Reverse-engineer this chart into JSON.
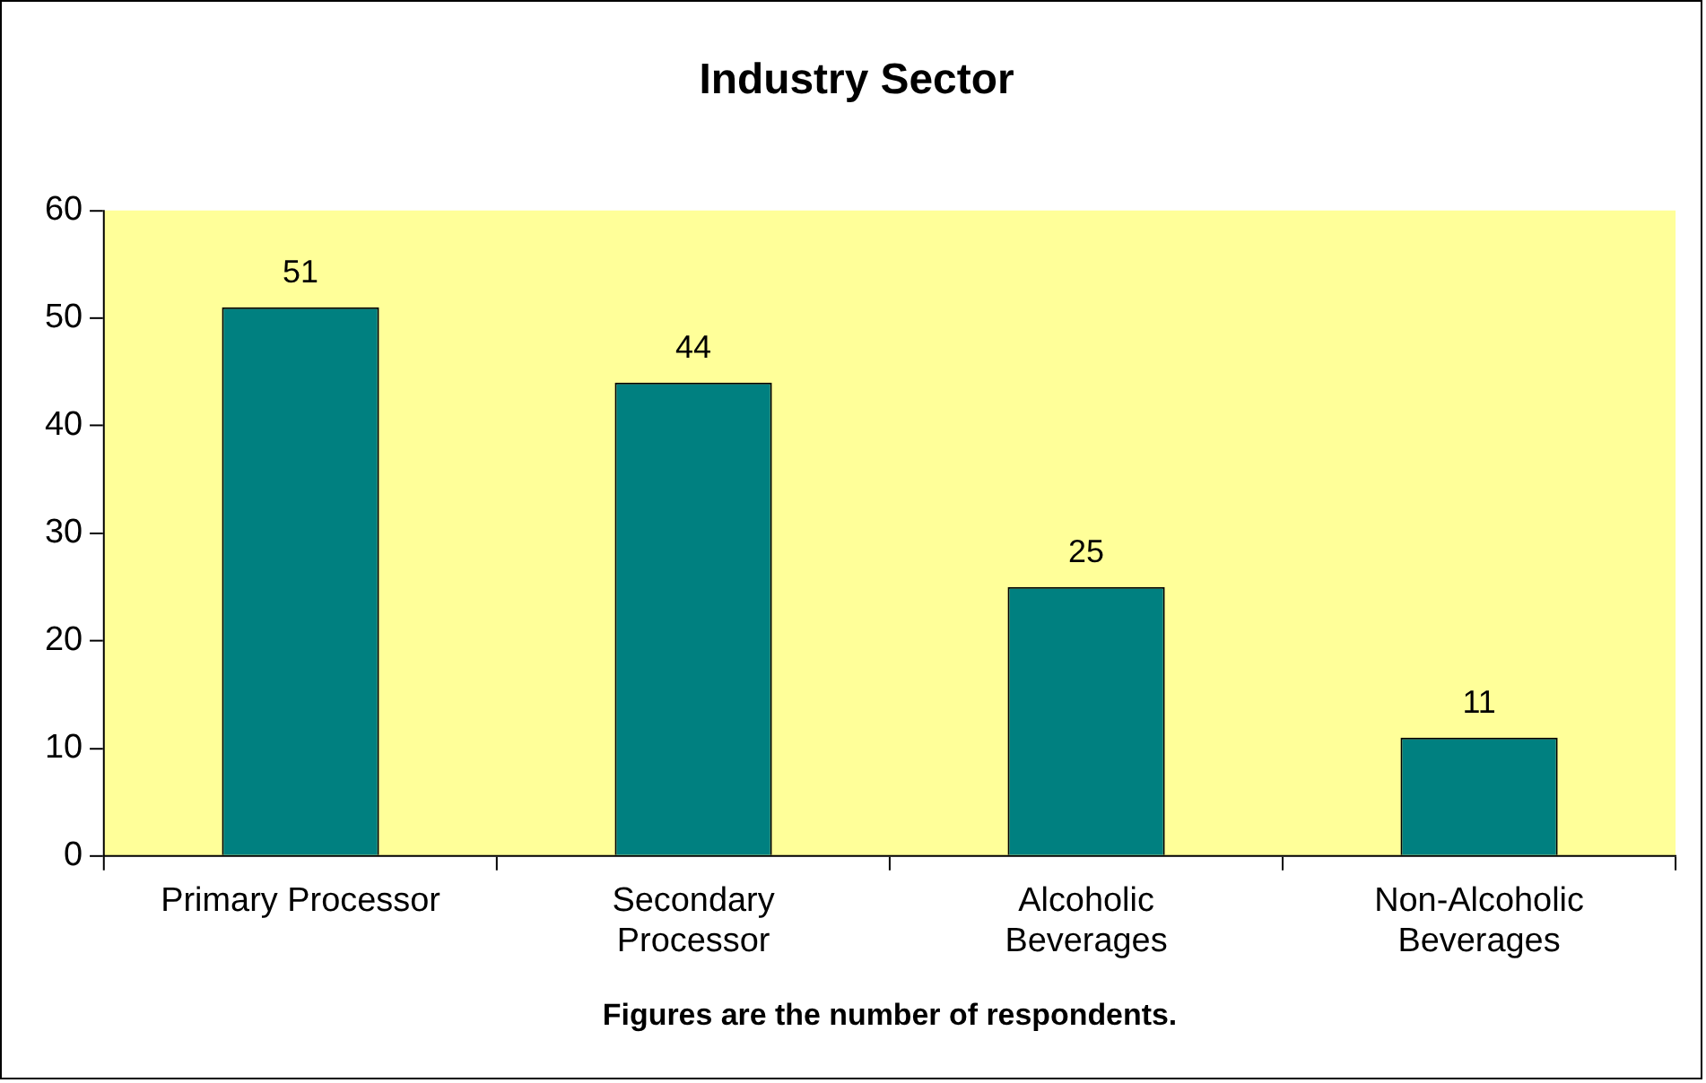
{
  "chart_data": {
    "type": "bar",
    "title": "Industry Sector",
    "xlabel": "Figures are the number of respondents.",
    "categories": [
      "Primary Processor",
      "Secondary Processor",
      "Alcoholic Beverages",
      "Non-Alcoholic Beverages"
    ],
    "values": [
      51,
      44,
      25,
      11
    ],
    "color": "#008080",
    "ylim": [
      0,
      60
    ],
    "yticks": [
      0,
      10,
      20,
      30,
      40,
      50,
      60
    ],
    "grid": false,
    "legend": false,
    "data_labels": true
  }
}
